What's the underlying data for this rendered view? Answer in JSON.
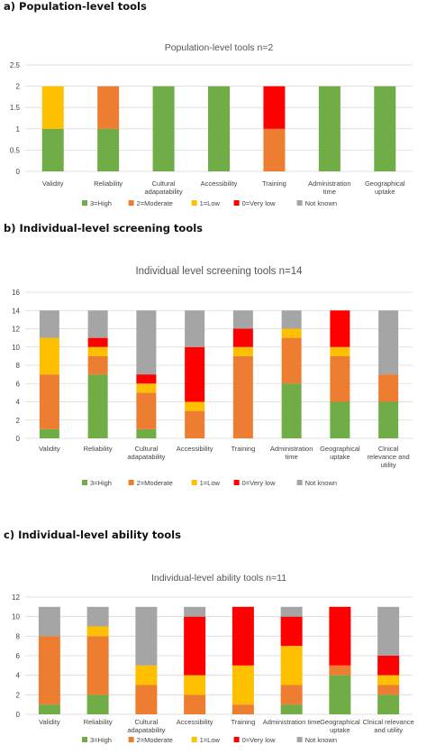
{
  "panels": [
    {
      "heading": "a) Population-level tools"
    },
    {
      "heading": "b) Individual-level screening tools"
    },
    {
      "heading": "c) Individual-level ability tools"
    }
  ],
  "legend": [
    {
      "name": "3=High",
      "color": "#70ad47"
    },
    {
      "name": "2=Moderate",
      "color": "#ed7d31"
    },
    {
      "name": "1=Low",
      "color": "#ffc000"
    },
    {
      "name": "0=Very low",
      "color": "#ff0000"
    },
    {
      "name": "Not known",
      "color": "#a5a5a5"
    }
  ],
  "chart_data": [
    {
      "type": "bar",
      "stacked": true,
      "title": "Population-level tools n=2",
      "categories": [
        [
          "Validity"
        ],
        [
          "Reliability"
        ],
        [
          "Cultural",
          "adapatability"
        ],
        [
          "Accessibility"
        ],
        [
          "Training"
        ],
        [
          "Administration",
          "time"
        ],
        [
          "Geographical",
          "uptake"
        ]
      ],
      "ylim": [
        0,
        2.5
      ],
      "yticks": [
        "0",
        "0.5",
        "1",
        "1.5",
        "2",
        "2.5"
      ],
      "ystep": 0.5,
      "grid": true,
      "legend_position": "bottom",
      "series": [
        {
          "name": "3=High",
          "color": "#70ad47",
          "values": [
            1,
            1,
            2,
            2,
            0,
            2,
            2
          ]
        },
        {
          "name": "2=Moderate",
          "color": "#ed7d31",
          "values": [
            0,
            1,
            0,
            0,
            1,
            0,
            0
          ]
        },
        {
          "name": "1=Low",
          "color": "#ffc000",
          "values": [
            1,
            0,
            0,
            0,
            0,
            0,
            0
          ]
        },
        {
          "name": "0=Very low",
          "color": "#ff0000",
          "values": [
            0,
            0,
            0,
            0,
            1,
            0,
            0
          ]
        },
        {
          "name": "Not known",
          "color": "#a5a5a5",
          "values": [
            0,
            0,
            0,
            0,
            0,
            0,
            0
          ]
        }
      ]
    },
    {
      "type": "bar",
      "stacked": true,
      "title": "Individual level screening tools n=14",
      "categories": [
        [
          "Validity"
        ],
        [
          "Reliability"
        ],
        [
          "Cultural",
          "adapatability"
        ],
        [
          "Accessibility"
        ],
        [
          "Training"
        ],
        [
          "Administration",
          "time"
        ],
        [
          "Geographical",
          "uptake"
        ],
        [
          "Clnical",
          "relevance and",
          "utility"
        ]
      ],
      "ylim": [
        0,
        16
      ],
      "yticks": [
        "0",
        "2",
        "4",
        "6",
        "8",
        "10",
        "12",
        "14",
        "16"
      ],
      "ystep": 2,
      "grid": true,
      "legend_position": "bottom",
      "series": [
        {
          "name": "3=High",
          "color": "#70ad47",
          "values": [
            1,
            7,
            1,
            0,
            0,
            6,
            4,
            4
          ]
        },
        {
          "name": "2=Moderate",
          "color": "#ed7d31",
          "values": [
            6,
            2,
            4,
            3,
            9,
            5,
            5,
            3
          ]
        },
        {
          "name": "1=Low",
          "color": "#ffc000",
          "values": [
            4,
            1,
            1,
            1,
            1,
            1,
            1,
            0
          ]
        },
        {
          "name": "0=Very low",
          "color": "#ff0000",
          "values": [
            0,
            1,
            1,
            6,
            2,
            0,
            4,
            0
          ]
        },
        {
          "name": "Not known",
          "color": "#a5a5a5",
          "values": [
            3,
            3,
            7,
            4,
            2,
            2,
            0,
            7
          ]
        }
      ]
    },
    {
      "type": "bar",
      "stacked": true,
      "title": "Individual-level ability tools n=11",
      "categories": [
        [
          "Validity"
        ],
        [
          "Reliability"
        ],
        [
          "Cultural",
          "adapatability"
        ],
        [
          "Accessibility"
        ],
        [
          "Training"
        ],
        [
          "Administration time"
        ],
        [
          "Geographical",
          "uptake"
        ],
        [
          "Clnical relevance",
          "and utility"
        ]
      ],
      "ylim": [
        0,
        12
      ],
      "yticks": [
        "0",
        "2",
        "4",
        "6",
        "8",
        "10",
        "12"
      ],
      "ystep": 2,
      "grid": true,
      "legend_position": "bottom",
      "series": [
        {
          "name": "3=High",
          "color": "#70ad47",
          "values": [
            1,
            2,
            0,
            0,
            0,
            1,
            4,
            2
          ]
        },
        {
          "name": "2=Moderate",
          "color": "#ed7d31",
          "values": [
            7,
            6,
            3,
            2,
            1,
            2,
            1,
            1
          ]
        },
        {
          "name": "1=Low",
          "color": "#ffc000",
          "values": [
            0,
            1,
            2,
            2,
            4,
            4,
            0,
            1
          ]
        },
        {
          "name": "0=Very low",
          "color": "#ff0000",
          "values": [
            0,
            0,
            0,
            6,
            6,
            3,
            6,
            2
          ]
        },
        {
          "name": "Not known",
          "color": "#a5a5a5",
          "values": [
            3,
            2,
            6,
            1,
            0,
            1,
            0,
            5
          ]
        }
      ]
    }
  ]
}
